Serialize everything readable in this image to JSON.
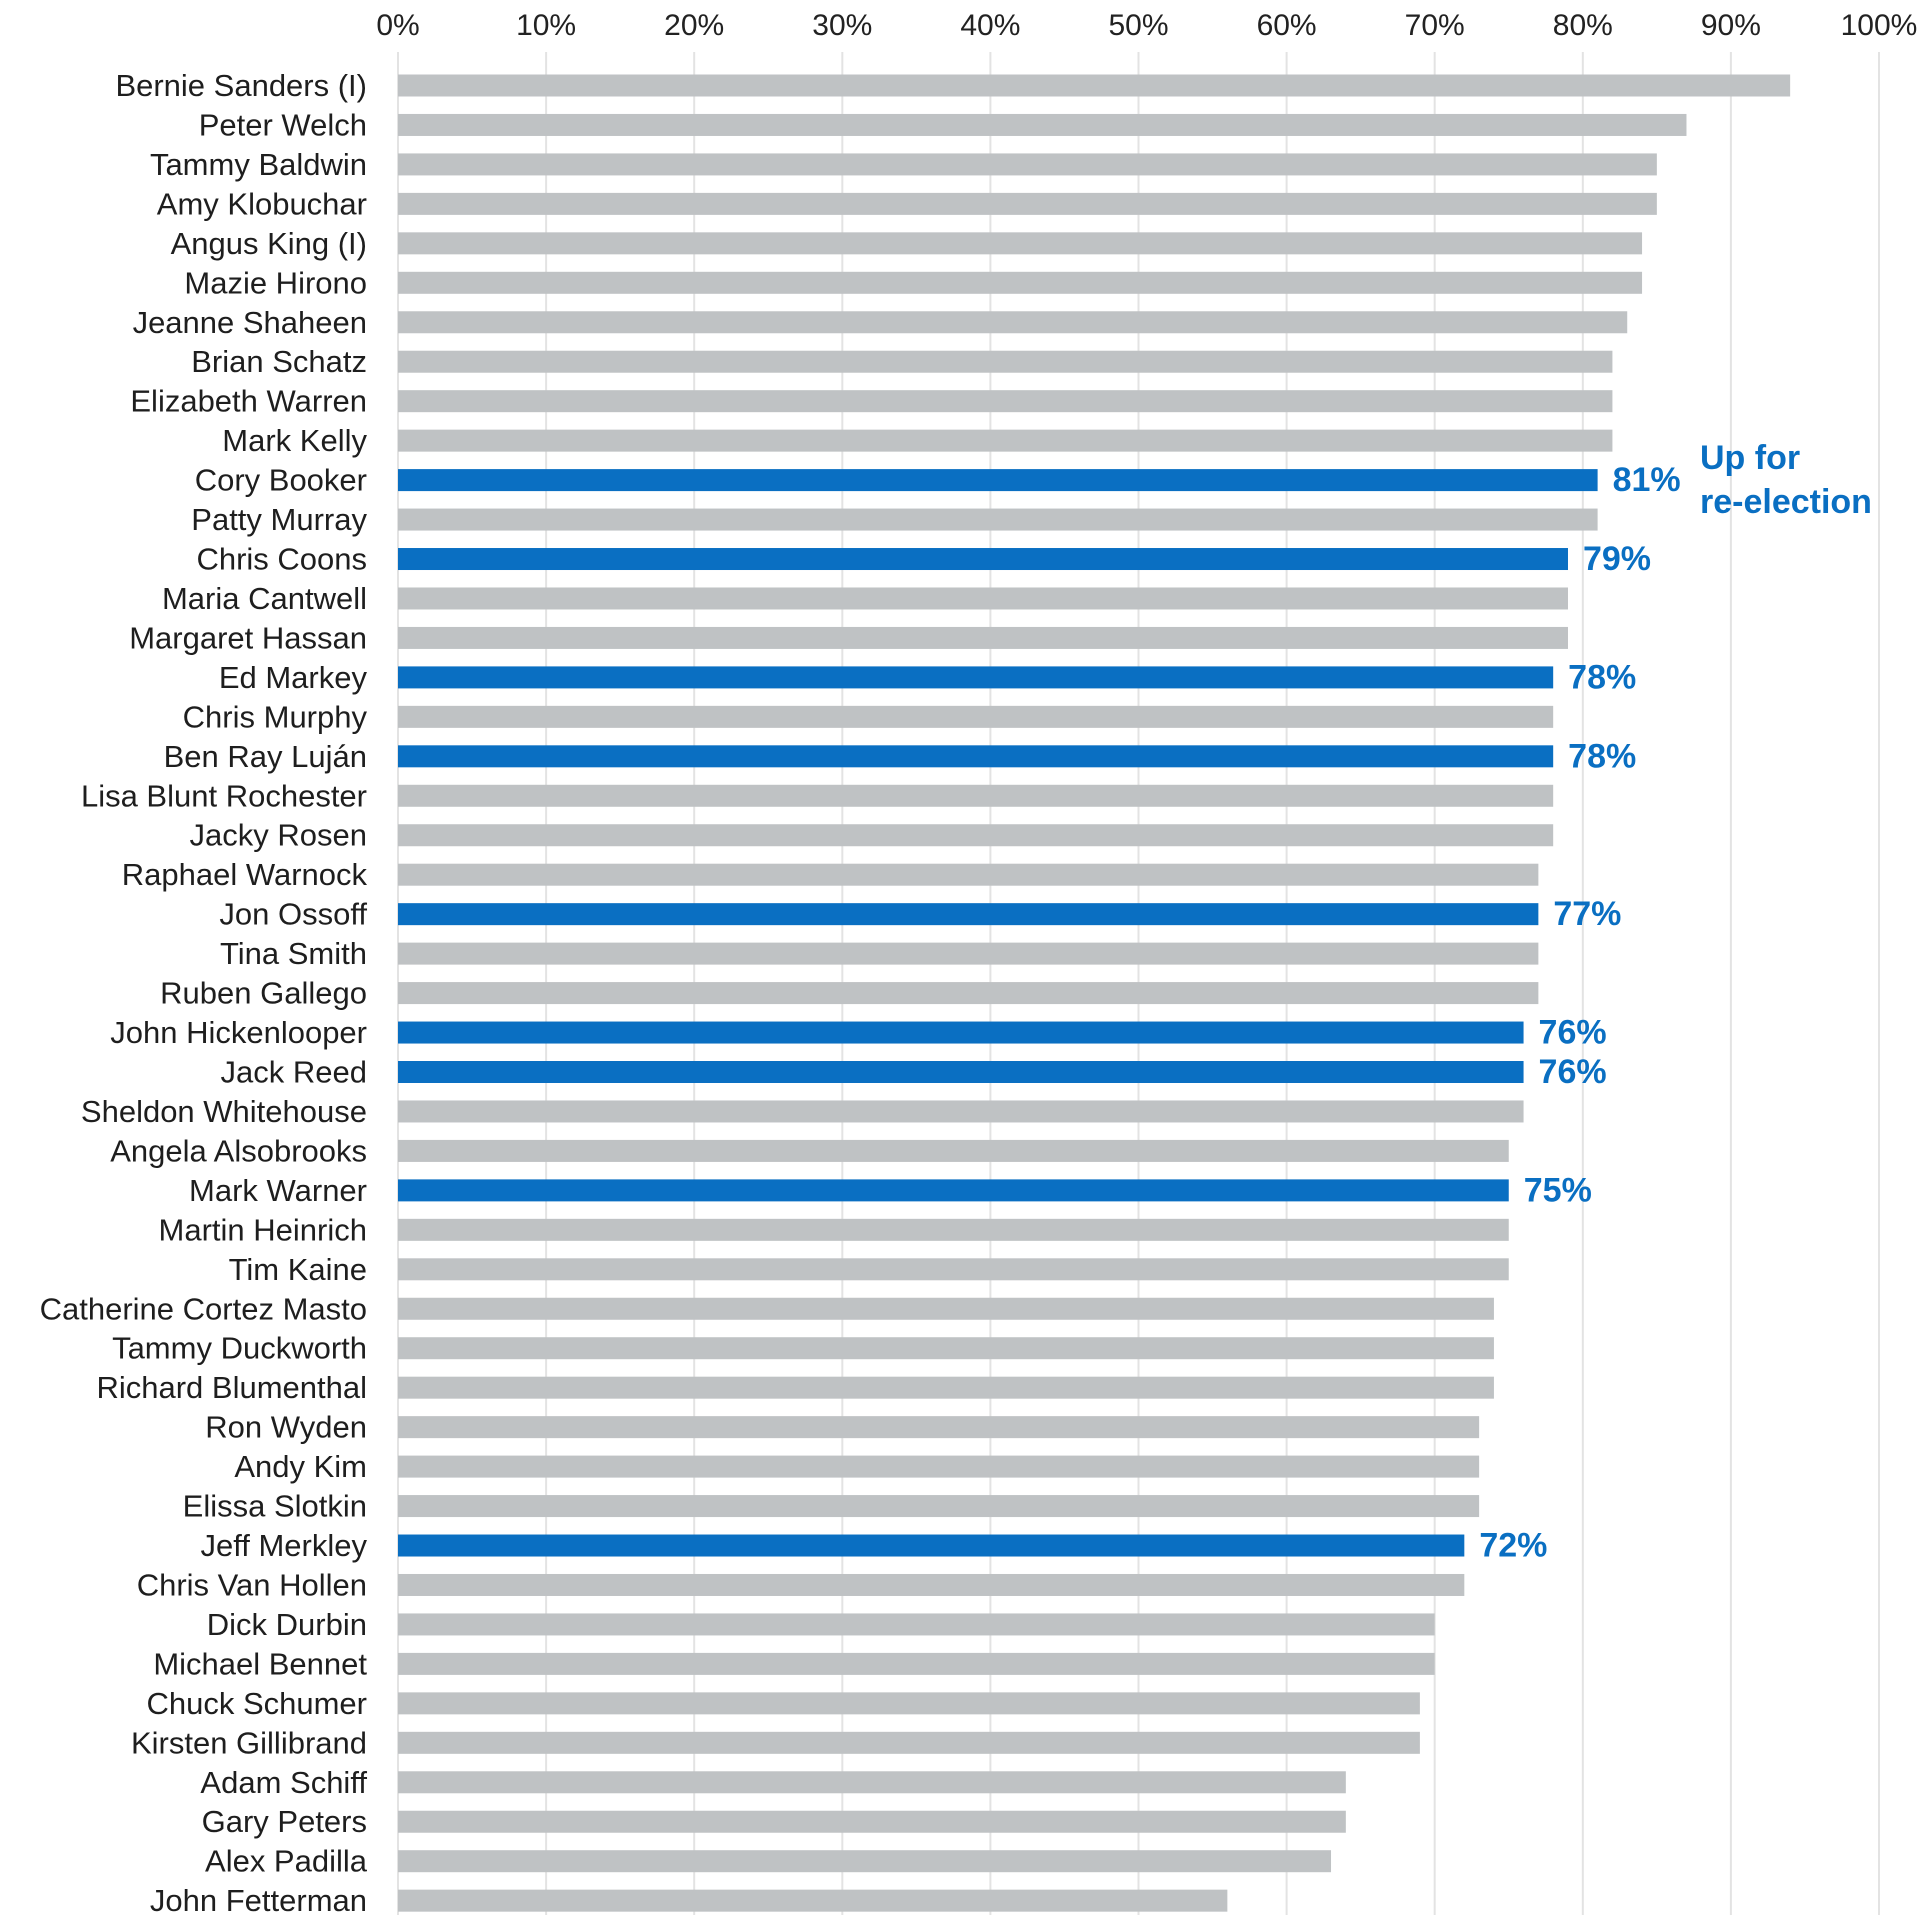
{
  "chart_data": {
    "type": "bar",
    "orientation": "horizontal",
    "title": "",
    "xlabel": "",
    "ylabel": "",
    "xlim": [
      0,
      100
    ],
    "x_ticks": [
      0,
      10,
      20,
      30,
      40,
      50,
      60,
      70,
      80,
      90,
      100
    ],
    "x_tick_labels": [
      "0%",
      "10%",
      "20%",
      "30%",
      "40%",
      "50%",
      "60%",
      "70%",
      "80%",
      "90%",
      "100%"
    ],
    "x_axis_position": "top",
    "grid": "vertical",
    "categories": [
      "Bernie Sanders (I)",
      "Peter Welch",
      "Tammy Baldwin",
      "Amy Klobuchar",
      "Angus King (I)",
      "Mazie Hirono",
      "Jeanne Shaheen",
      "Brian Schatz",
      "Elizabeth Warren",
      "Mark Kelly",
      "Cory Booker",
      "Patty Murray",
      "Chris Coons",
      "Maria Cantwell",
      "Margaret Hassan",
      "Ed Markey",
      "Chris Murphy",
      "Ben Ray Luján",
      "Lisa Blunt Rochester",
      "Jacky Rosen",
      "Raphael Warnock",
      "Jon Ossoff",
      "Tina Smith",
      "Ruben Gallego",
      "John Hickenlooper",
      "Jack Reed",
      "Sheldon Whitehouse",
      "Angela Alsobrooks",
      "Mark Warner",
      "Martin Heinrich",
      "Tim Kaine",
      "Catherine Cortez Masto",
      "Tammy Duckworth",
      "Richard Blumenthal",
      "Ron Wyden",
      "Andy Kim",
      "Elissa Slotkin",
      "Jeff Merkley",
      "Chris Van Hollen",
      "Dick Durbin",
      "Michael Bennet",
      "Chuck Schumer",
      "Kirsten Gillibrand",
      "Adam Schiff",
      "Gary Peters",
      "Alex Padilla",
      "John Fetterman"
    ],
    "values": [
      94,
      87,
      85,
      85,
      84,
      84,
      83,
      82,
      82,
      82,
      81,
      81,
      79,
      79,
      79,
      78,
      78,
      78,
      78,
      78,
      77,
      77,
      77,
      77,
      76,
      76,
      76,
      75,
      75,
      75,
      75,
      74,
      74,
      74,
      73,
      73,
      73,
      72,
      72,
      70,
      70,
      69,
      69,
      64,
      64,
      63,
      56
    ],
    "highlighted": [
      false,
      false,
      false,
      false,
      false,
      false,
      false,
      false,
      false,
      false,
      true,
      false,
      true,
      false,
      false,
      true,
      false,
      true,
      false,
      false,
      false,
      true,
      false,
      false,
      true,
      true,
      false,
      false,
      true,
      false,
      false,
      false,
      false,
      false,
      false,
      false,
      false,
      true,
      false,
      false,
      false,
      false,
      false,
      false,
      false,
      false,
      false
    ],
    "value_labels": [
      "",
      "",
      "",
      "",
      "",
      "",
      "",
      "",
      "",
      "",
      "81%",
      "",
      "79%",
      "",
      "",
      "78%",
      "",
      "78%",
      "",
      "",
      "",
      "77%",
      "",
      "",
      "76%",
      "76%",
      "",
      "",
      "75%",
      "",
      "",
      "",
      "",
      "",
      "",
      "",
      "",
      "72%",
      "",
      "",
      "",
      "",
      "",
      "",
      "",
      "",
      ""
    ],
    "annotation": {
      "lines": [
        "Up for",
        "re-election"
      ],
      "anchor_category": "Cory Booker"
    },
    "colors": {
      "default_bar": "#bfc2c4",
      "highlight_bar": "#0a6fc2",
      "gridline": "#e3e3e3",
      "label_text": "#1e1e1e"
    }
  }
}
